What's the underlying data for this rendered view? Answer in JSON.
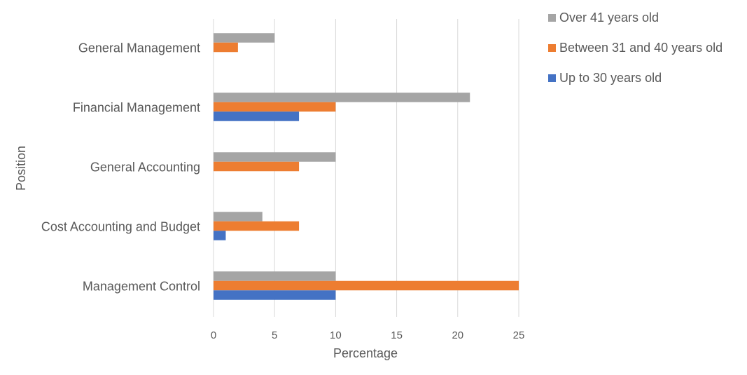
{
  "chart_data": {
    "type": "bar",
    "orientation": "horizontal",
    "categories": [
      "General Management",
      "Financial Management",
      "General Accounting",
      "Cost Accounting and Budget",
      "Management Control"
    ],
    "series": [
      {
        "name": "Over 41 years old",
        "color": "#a5a5a5",
        "values": [
          5,
          21,
          10,
          4,
          10
        ]
      },
      {
        "name": "Between 31 and 40 years old",
        "color": "#ed7d31",
        "values": [
          2,
          10,
          7,
          7,
          25
        ]
      },
      {
        "name": "Up to 30 years old",
        "color": "#4472c4",
        "values": [
          0,
          7,
          0,
          1,
          10
        ]
      }
    ],
    "xlabel": "Percentage",
    "ylabel": "Position",
    "xlim": [
      0,
      25
    ],
    "xticks": [
      0,
      5,
      10,
      15,
      20,
      25
    ],
    "grid": true,
    "legend": "top-right"
  }
}
